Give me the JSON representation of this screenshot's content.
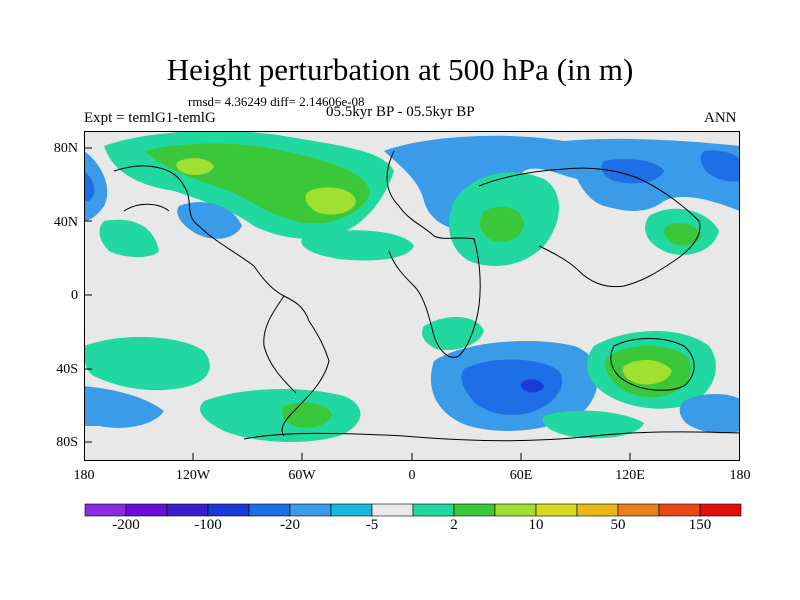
{
  "title": "Height perturbation at 500 hPa (in m)",
  "stats": "rmsd= 4.36249 diff= 2.14606e-08",
  "left_label": "Expt = temlG1-temlG",
  "center_label": "05.5kyr BP - 05.5kyr BP",
  "right_label": "ANN",
  "y_axis": {
    "ticks": [
      {
        "value": 80,
        "label": "80N"
      },
      {
        "value": 40,
        "label": "40N"
      },
      {
        "value": 0,
        "label": "0"
      },
      {
        "value": -40,
        "label": "40S"
      },
      {
        "value": -80,
        "label": "80S"
      }
    ]
  },
  "x_axis": {
    "ticks": [
      {
        "value": -180,
        "label": "180"
      },
      {
        "value": -120,
        "label": "120W"
      },
      {
        "value": -60,
        "label": "60W"
      },
      {
        "value": 0,
        "label": "0"
      },
      {
        "value": 60,
        "label": "60E"
      },
      {
        "value": 120,
        "label": "120E"
      },
      {
        "value": 180,
        "label": "180"
      }
    ]
  },
  "colorbar": {
    "colors": [
      "#8a2be2",
      "#6a0dd8",
      "#3a1fc8",
      "#1a3ad6",
      "#1e6ee6",
      "#3a9be8",
      "#18b8e0",
      "#e8e8e8",
      "#20d8a0",
      "#3ac83a",
      "#a0e030",
      "#d8d820",
      "#e8b818",
      "#e88018",
      "#e84818",
      "#e01010"
    ],
    "labels": [
      {
        "after_index": 0,
        "text": "-200"
      },
      {
        "after_index": 2,
        "text": "-100"
      },
      {
        "after_index": 4,
        "text": "-20"
      },
      {
        "after_index": 6,
        "text": "-5"
      },
      {
        "after_index": 8,
        "text": "2"
      },
      {
        "after_index": 10,
        "text": "10"
      },
      {
        "after_index": 12,
        "text": "50"
      },
      {
        "after_index": 14,
        "text": "150"
      }
    ]
  },
  "legend_colors": {
    "background": "#e8e8e8",
    "light_blue": "#3a9be8",
    "blue": "#1e6ee6",
    "dark_blue": "#1a3ad6",
    "teal": "#20d8a0",
    "green": "#3ac83a",
    "yellow_green": "#a0e030"
  }
}
